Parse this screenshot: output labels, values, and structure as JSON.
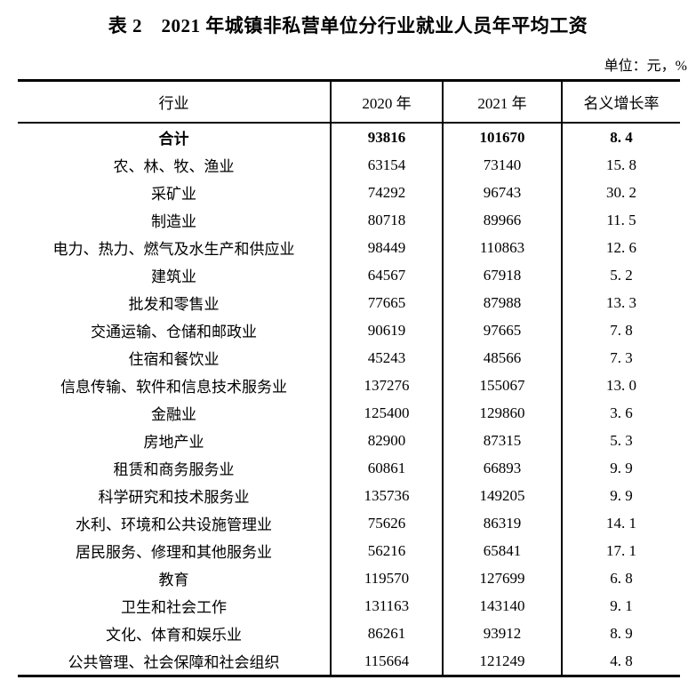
{
  "page": {
    "title": "表 2　2021 年城镇非私营单位分行业就业人员年平均工资",
    "unit_note": "单位：元，%"
  },
  "table": {
    "columns": [
      "行业",
      "2020 年",
      "2021 年",
      "名义增长率"
    ],
    "total_row": {
      "industry": "合计",
      "y2020": "93816",
      "y2021": "101670",
      "growth": "8. 4"
    },
    "rows": [
      {
        "industry": "农、林、牧、渔业",
        "y2020": "63154",
        "y2021": "73140",
        "growth": "15. 8"
      },
      {
        "industry": "采矿业",
        "y2020": "74292",
        "y2021": "96743",
        "growth": "30. 2"
      },
      {
        "industry": "制造业",
        "y2020": "80718",
        "y2021": "89966",
        "growth": "11. 5"
      },
      {
        "industry": "电力、热力、燃气及水生产和供应业",
        "y2020": "98449",
        "y2021": "110863",
        "growth": "12. 6"
      },
      {
        "industry": "建筑业",
        "y2020": "64567",
        "y2021": "67918",
        "growth": "5. 2"
      },
      {
        "industry": "批发和零售业",
        "y2020": "77665",
        "y2021": "87988",
        "growth": "13. 3"
      },
      {
        "industry": "交通运输、仓储和邮政业",
        "y2020": "90619",
        "y2021": "97665",
        "growth": "7. 8"
      },
      {
        "industry": "住宿和餐饮业",
        "y2020": "45243",
        "y2021": "48566",
        "growth": "7. 3"
      },
      {
        "industry": "信息传输、软件和信息技术服务业",
        "y2020": "137276",
        "y2021": "155067",
        "growth": "13. 0"
      },
      {
        "industry": "金融业",
        "y2020": "125400",
        "y2021": "129860",
        "growth": "3. 6"
      },
      {
        "industry": "房地产业",
        "y2020": "82900",
        "y2021": "87315",
        "growth": "5. 3"
      },
      {
        "industry": "租赁和商务服务业",
        "y2020": "60861",
        "y2021": "66893",
        "growth": "9. 9"
      },
      {
        "industry": "科学研究和技术服务业",
        "y2020": "135736",
        "y2021": "149205",
        "growth": "9. 9"
      },
      {
        "industry": "水利、环境和公共设施管理业",
        "y2020": "75626",
        "y2021": "86319",
        "growth": "14. 1"
      },
      {
        "industry": "居民服务、修理和其他服务业",
        "y2020": "56216",
        "y2021": "65841",
        "growth": "17. 1"
      },
      {
        "industry": "教育",
        "y2020": "119570",
        "y2021": "127699",
        "growth": "6. 8"
      },
      {
        "industry": "卫生和社会工作",
        "y2020": "131163",
        "y2021": "143140",
        "growth": "9. 1"
      },
      {
        "industry": "文化、体育和娱乐业",
        "y2020": "86261",
        "y2021": "93912",
        "growth": "8. 9"
      },
      {
        "industry": "公共管理、社会保障和社会组织",
        "y2020": "115664",
        "y2021": "121249",
        "growth": "4. 8"
      }
    ]
  }
}
